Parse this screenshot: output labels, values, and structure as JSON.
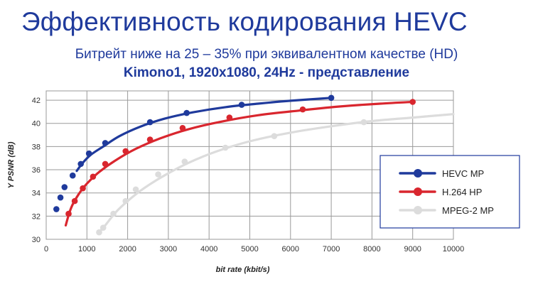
{
  "title": "Эффективность кодирования HEVC",
  "subtitle": "Битрейт ниже на 25 – 35% при эквивалентном качестве (HD)",
  "subtitle2": "Kimono1, 1920x1080, 24Hz - представление",
  "chart_data": {
    "type": "line",
    "xlabel": "bit rate (kbit/s)",
    "ylabel": "Y PSNR (dB)",
    "xlim": [
      0,
      10000
    ],
    "ylim": [
      30,
      42.8
    ],
    "xticks": [
      "0",
      "1000",
      "2000",
      "3000",
      "4000",
      "5000",
      "6000",
      "7000",
      "8000",
      "9000",
      "10000"
    ],
    "yticks": [
      "30",
      "32",
      "34",
      "36",
      "38",
      "40",
      "42"
    ],
    "grid": true,
    "legend_position": "right",
    "series": [
      {
        "name": "HEVC MP",
        "color": "#1f3a9c",
        "points": [
          [
            250,
            32.6
          ],
          [
            350,
            33.6
          ],
          [
            450,
            34.5
          ],
          [
            650,
            35.5
          ],
          [
            850,
            36.5
          ],
          [
            1050,
            37.4
          ],
          [
            1450,
            38.3
          ],
          [
            2550,
            40.1
          ],
          [
            3450,
            40.9
          ],
          [
            4800,
            41.6
          ],
          [
            7000,
            42.2
          ]
        ],
        "curve": [
          [
            750,
            35.9
          ],
          [
            900,
            36.6
          ],
          [
            1100,
            37.3
          ],
          [
            1400,
            38.0
          ],
          [
            1800,
            38.9
          ],
          [
            2300,
            39.7
          ],
          [
            2900,
            40.4
          ],
          [
            3600,
            40.95
          ],
          [
            4400,
            41.4
          ],
          [
            5200,
            41.7
          ],
          [
            6000,
            41.95
          ],
          [
            7000,
            42.2
          ]
        ]
      },
      {
        "name": "H.264 HP",
        "color": "#d9262e",
        "points": [
          [
            550,
            32.2
          ],
          [
            700,
            33.3
          ],
          [
            900,
            34.4
          ],
          [
            1150,
            35.4
          ],
          [
            1450,
            36.5
          ],
          [
            1950,
            37.6
          ],
          [
            2550,
            38.6
          ],
          [
            3350,
            39.6
          ],
          [
            4500,
            40.5
          ],
          [
            6300,
            41.2
          ],
          [
            9000,
            41.85
          ]
        ],
        "curve": [
          [
            480,
            31.2
          ],
          [
            560,
            32.2
          ],
          [
            650,
            33.0
          ],
          [
            800,
            33.9
          ],
          [
            1000,
            34.8
          ],
          [
            1300,
            35.8
          ],
          [
            1700,
            36.8
          ],
          [
            2200,
            37.8
          ],
          [
            2800,
            38.7
          ],
          [
            3500,
            39.5
          ],
          [
            4300,
            40.15
          ],
          [
            5200,
            40.7
          ],
          [
            6200,
            41.1
          ],
          [
            7200,
            41.45
          ],
          [
            8200,
            41.7
          ],
          [
            9000,
            41.85
          ]
        ]
      },
      {
        "name": "MPEG-2 MP",
        "color": "#dcdcdc",
        "points": [
          [
            1300,
            30.6
          ],
          [
            1400,
            31.0
          ],
          [
            1650,
            32.2
          ],
          [
            1950,
            33.3
          ],
          [
            2200,
            34.3
          ],
          [
            2750,
            35.6
          ],
          [
            3400,
            36.7
          ],
          [
            4400,
            37.9
          ],
          [
            5600,
            38.9
          ],
          [
            7800,
            40.1
          ]
        ],
        "curve": [
          [
            1300,
            30.6
          ],
          [
            1450,
            31.2
          ],
          [
            1700,
            32.3
          ],
          [
            2000,
            33.3
          ],
          [
            2400,
            34.4
          ],
          [
            2900,
            35.5
          ],
          [
            3500,
            36.6
          ],
          [
            4200,
            37.6
          ],
          [
            5000,
            38.45
          ],
          [
            6000,
            39.2
          ],
          [
            7000,
            39.75
          ],
          [
            8000,
            40.2
          ],
          [
            9000,
            40.5
          ],
          [
            10000,
            40.8
          ]
        ]
      }
    ]
  }
}
